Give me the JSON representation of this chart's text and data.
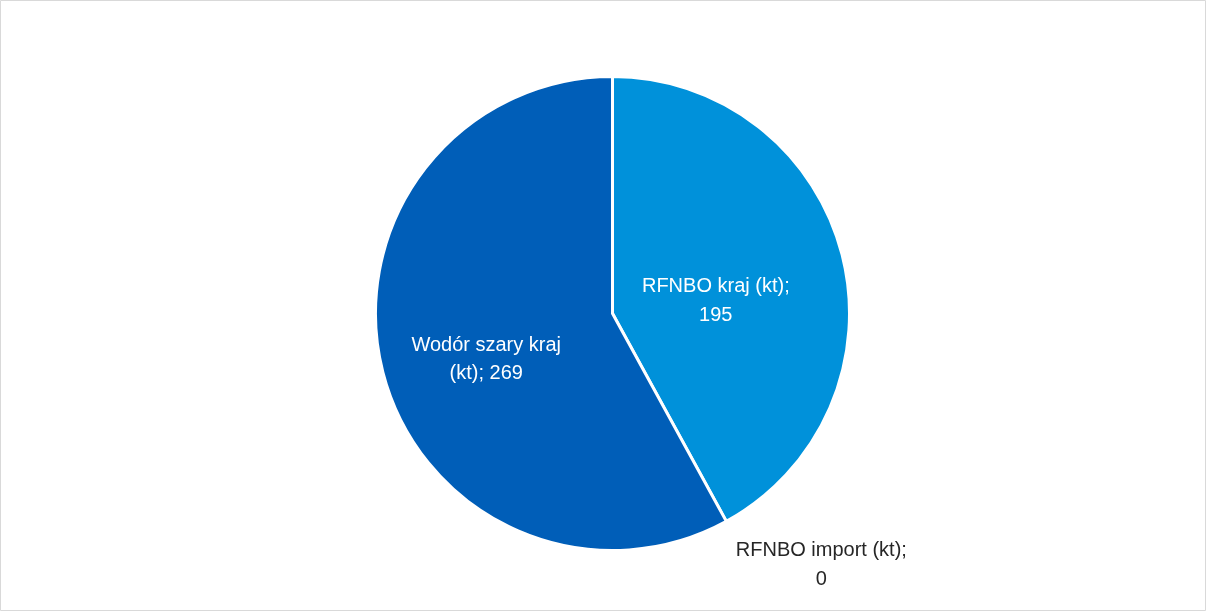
{
  "chart_data": {
    "type": "pie",
    "categories": [
      null,
      null,
      null
    ],
    "values": [
      195,
      0,
      269
    ],
    "colors": [
      "#0091da",
      "#00b0f0",
      "#005eb8"
    ],
    "value_labels": [
      "RFNBO kraj (kt); 195",
      "RFNBO import (kt); 0",
      "Wodór szary kraj (kt); 269"
    ]
  }
}
